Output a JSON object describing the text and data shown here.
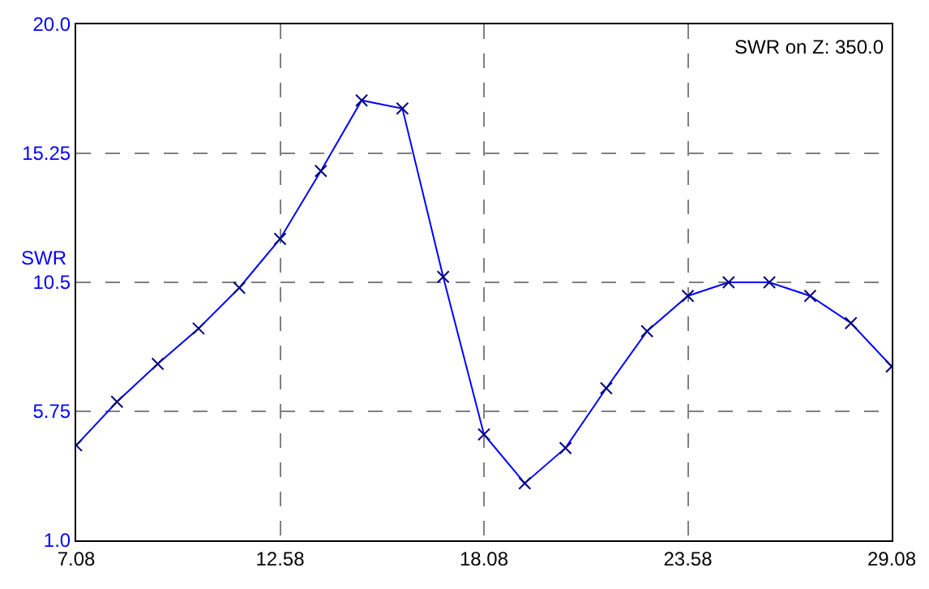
{
  "chart_data": {
    "type": "line",
    "ylabel": "SWR",
    "annotations": [
      "SWR on Z: 350.0"
    ],
    "x": [
      7.08,
      8.18,
      9.28,
      10.38,
      11.48,
      12.58,
      13.68,
      14.78,
      15.88,
      16.98,
      18.08,
      19.18,
      20.28,
      21.38,
      22.48,
      23.58,
      24.68,
      25.78,
      26.88,
      27.98,
      29.08
    ],
    "series": [
      {
        "color": "#0000ff",
        "values": [
          4.5,
          6.1,
          7.5,
          8.8,
          10.3,
          12.1,
          14.6,
          17.2,
          16.9,
          10.7,
          4.9,
          3.1,
          4.4,
          6.6,
          8.7,
          10.0,
          10.5,
          10.5,
          10.0,
          9.0,
          7.4
        ]
      }
    ],
    "xlim": [
      7.08,
      29.08
    ],
    "xticks": [
      7.08,
      12.58,
      18.08,
      23.58,
      29.08
    ],
    "ylim": [
      1.0,
      20.0
    ],
    "yticks": [
      {
        "value": 1.0,
        "label": "1.0"
      },
      5.75,
      {
        "value": 10.5,
        "label": "10.5"
      },
      15.25,
      {
        "value": 20.0,
        "label": "20.0"
      }
    ],
    "grid": true,
    "marker": "cross",
    "line_style": "solid"
  }
}
